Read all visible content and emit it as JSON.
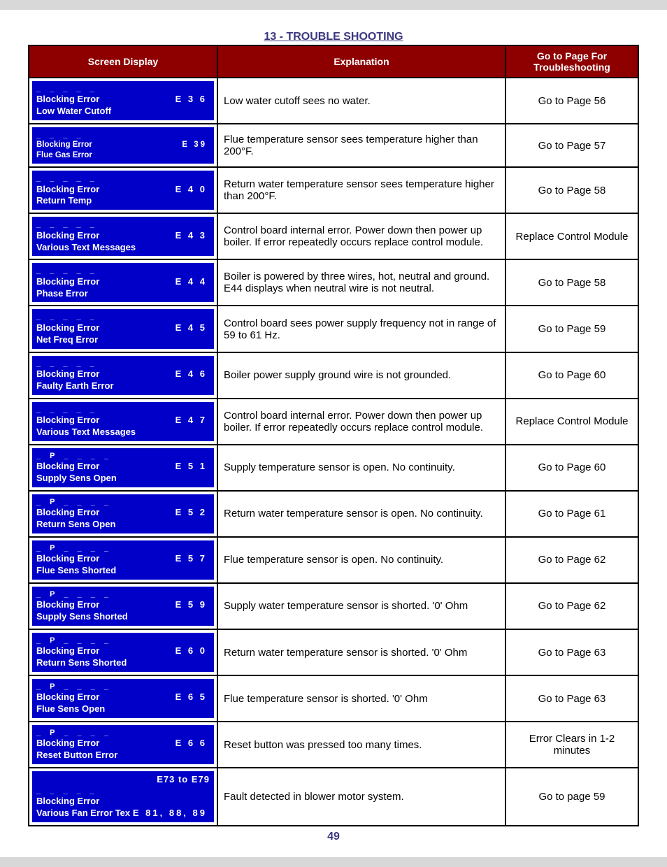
{
  "section_title": "13 - TROUBLE SHOOTING",
  "page_number": "49",
  "headers": {
    "c1": "Screen Display",
    "c2": "Explanation",
    "c3": "Go to Page For Troubleshooting"
  },
  "rows": [
    {
      "dash": "_ _ _ _ _",
      "line1_left": "Blocking Error",
      "line1_right": "E 3 6",
      "line2": "Low Water Cutoff",
      "explanation": "Low water cutoff sees no water.",
      "goto": "Go to Page 56"
    },
    {
      "dash": "_ _ _ _",
      "line1_left": "Blocking Error",
      "line1_right": "E 39",
      "line2": "Flue Gas Error",
      "explanation": "Flue temperature sensor sees temperature higher than 200°F.",
      "goto": "Go to Page 57",
      "smallfont": true
    },
    {
      "dash": "_ _ _ _ _",
      "line1_left": "Blocking Error",
      "line1_right": "E 4 0",
      "line2": "Return Temp",
      "explanation": "Return water temperature sensor sees temperature higher than 200°F.",
      "goto": "Go to Page 58"
    },
    {
      "dash": "_ _ _ _ _",
      "line1_left": "Blocking Error",
      "line1_right": "E 4 3",
      "line2": "Various Text Messages",
      "explanation": "Control board internal error. Power down then power up boiler. If error repeatedly occurs replace control module.",
      "goto": "Replace Control Module"
    },
    {
      "dash": "_ _ _ _ _",
      "line1_left": "Blocking Error",
      "line1_right": "E 4 4",
      "line2": "Phase Error",
      "explanation": "Boiler is powered by three wires, hot, neutral and ground. E44 displays when neutral wire is not neutral.",
      "goto": "Go to Page 58"
    },
    {
      "dash": "_ _ _ _ _",
      "line1_left": "Blocking Error",
      "line1_right": "E 4 5",
      "line2": "Net Freq Error",
      "explanation": "Control board sees power supply frequency not in range of 59 to 61 Hz.",
      "goto": "Go to Page 59"
    },
    {
      "dash": "_ _ _ _ _",
      "line1_left": "Blocking Error",
      "line1_right": "E 4 6",
      "line2": "Faulty Earth Error",
      "explanation": "Boiler power supply ground wire is not grounded.",
      "goto": "Go to Page 60"
    },
    {
      "dash": "_ _ _ _ _",
      "line1_left": "Blocking Error",
      "line1_right": "E 4 7",
      "line2": "Various Text Messages",
      "explanation": "Control board internal error. Power down then power up boiler. If error repeatedly occurs replace control module.",
      "goto": "Replace Control Module"
    },
    {
      "dash": "_ P _ _ _ _",
      "line1_left": "Blocking Error",
      "line1_right": "E 5 1",
      "line2": "Supply Sens Open",
      "explanation": "Supply temperature sensor is open. No continuity.",
      "goto": "Go to Page 60"
    },
    {
      "dash": "_ P _ _ _ _",
      "line1_left": "Blocking Error",
      "line1_right": "E 5 2",
      "line2": "Return Sens Open",
      "explanation": "Return water temperature sensor is open. No continuity.",
      "goto": "Go to Page 61"
    },
    {
      "dash": "_ P _ _ _ _",
      "line1_left": "Blocking Error",
      "line1_right": "E 5 7",
      "line2": "Flue Sens Shorted",
      "explanation": "Flue temperature sensor is open. No continuity.",
      "goto": "Go to Page 62"
    },
    {
      "dash": "_ P _ _ _ _",
      "line1_left": "Blocking Error",
      "line1_right": "E 5 9",
      "line2": "Supply Sens Shorted",
      "explanation": "Supply water temperature sensor is shorted. '0' Ohm",
      "goto": "Go to Page 62"
    },
    {
      "dash": "_ P _ _ _ _",
      "line1_left": "Blocking Error",
      "line1_right": "E 6 0",
      "line2": "Return Sens Shorted",
      "explanation": "Return water temperature sensor is shorted. '0' Ohm",
      "goto": "Go to Page 63"
    },
    {
      "dash": "_ P _ _ _ _",
      "line1_left": "Blocking Error",
      "line1_right": "E 6 5",
      "line2": "Flue Sens Open",
      "explanation": "Flue temperature sensor is shorted. '0' Ohm",
      "goto": "Go to Page 63"
    },
    {
      "dash": "_ P _ _ _ _",
      "line1_left": "Blocking Error",
      "line1_right": "E 6 6",
      "line2": "Reset Button Error",
      "explanation": "Reset button was pressed too many times.",
      "goto": "Error Clears in 1-2 minutes"
    },
    {
      "top_right": "E73 to  E79",
      "dash": "_ _ _ _ _",
      "line1_left": "Blocking Error",
      "line1_right": "",
      "line2_left": "Various Fan Error Tex",
      "line2_right": "E 81, 88, 89",
      "explanation": "Fault detected in blower motor system.",
      "goto": "Go to page 59"
    }
  ]
}
